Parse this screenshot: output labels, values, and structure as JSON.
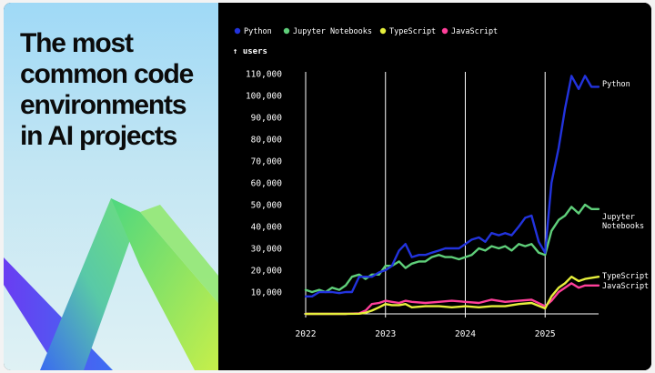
{
  "headline": [
    "The most",
    "common code",
    "environments",
    "in AI projects"
  ],
  "chart_data": {
    "type": "line",
    "ylabel": "users",
    "ylim": [
      0,
      110000
    ],
    "yticks": [
      10000,
      20000,
      30000,
      40000,
      50000,
      60000,
      70000,
      80000,
      90000,
      100000,
      110000
    ],
    "ytick_labels": [
      "10,000",
      "20,000",
      "30,000",
      "40,000",
      "50,000",
      "60,000",
      "70,000",
      "80,000",
      "90,000",
      "100,000",
      "110,000"
    ],
    "xticks": [
      2022,
      2023,
      2024,
      2025
    ],
    "xtick_labels": [
      "2022",
      "2023",
      "2024",
      "2025"
    ],
    "xlim": [
      2022.0,
      2025.67
    ],
    "legend_position": "top",
    "grid": false,
    "series": [
      {
        "name": "Python",
        "end_label": "Python",
        "color": "#2233dd",
        "x": [
          2022.0,
          2022.08,
          2022.17,
          2022.25,
          2022.33,
          2022.42,
          2022.5,
          2022.58,
          2022.67,
          2022.75,
          2022.83,
          2022.92,
          2023.0,
          2023.08,
          2023.17,
          2023.25,
          2023.33,
          2023.42,
          2023.5,
          2023.58,
          2023.67,
          2023.75,
          2023.83,
          2023.92,
          2024.0,
          2024.08,
          2024.17,
          2024.25,
          2024.33,
          2024.42,
          2024.5,
          2024.58,
          2024.67,
          2024.75,
          2024.83,
          2024.92,
          2025.0,
          2025.08,
          2025.17,
          2025.25,
          2025.33,
          2025.42,
          2025.5,
          2025.58,
          2025.67
        ],
        "values": [
          8000,
          8000,
          10000,
          10000,
          10000,
          9500,
          10000,
          10000,
          17000,
          17000,
          17000,
          19000,
          20000,
          22000,
          29000,
          32000,
          26000,
          27000,
          27000,
          28000,
          29000,
          30000,
          30000,
          30000,
          32000,
          34000,
          35000,
          33000,
          37000,
          36000,
          37000,
          36000,
          40000,
          44000,
          45000,
          33000,
          28000,
          60000,
          76000,
          94000,
          109000,
          103000,
          109000,
          104000,
          104000
        ]
      },
      {
        "name": "Jupyter Notebooks",
        "end_label": "Jupyter Notebooks",
        "color": "#5fcf7a",
        "x": [
          2022.0,
          2022.08,
          2022.17,
          2022.25,
          2022.33,
          2022.42,
          2022.5,
          2022.58,
          2022.67,
          2022.75,
          2022.83,
          2022.92,
          2023.0,
          2023.08,
          2023.17,
          2023.25,
          2023.33,
          2023.42,
          2023.5,
          2023.58,
          2023.67,
          2023.75,
          2023.83,
          2023.92,
          2024.0,
          2024.08,
          2024.17,
          2024.25,
          2024.33,
          2024.42,
          2024.5,
          2024.58,
          2024.67,
          2024.75,
          2024.83,
          2024.92,
          2025.0,
          2025.08,
          2025.17,
          2025.25,
          2025.33,
          2025.42,
          2025.5,
          2025.58,
          2025.67
        ],
        "values": [
          11000,
          10000,
          11000,
          10000,
          12000,
          11000,
          13000,
          17000,
          18000,
          16000,
          18000,
          18000,
          22000,
          22000,
          24000,
          21000,
          23000,
          24000,
          24000,
          26000,
          27000,
          26000,
          26000,
          25000,
          26000,
          27000,
          30000,
          29000,
          31000,
          30000,
          31000,
          29000,
          32000,
          31000,
          32000,
          28000,
          27000,
          38000,
          43000,
          45000,
          49000,
          46000,
          50000,
          48000,
          48000
        ]
      },
      {
        "name": "TypeScript",
        "end_label": "TypeScript",
        "color": "#e6ef3c",
        "x": [
          2022.0,
          2022.17,
          2022.33,
          2022.5,
          2022.67,
          2022.75,
          2022.83,
          2022.92,
          2023.0,
          2023.08,
          2023.17,
          2023.25,
          2023.33,
          2023.5,
          2023.67,
          2023.83,
          2024.0,
          2024.17,
          2024.33,
          2024.5,
          2024.67,
          2024.83,
          2025.0,
          2025.08,
          2025.17,
          2025.25,
          2025.33,
          2025.42,
          2025.5,
          2025.67
        ],
        "values": [
          0,
          0,
          0,
          0,
          100,
          500,
          1500,
          3000,
          4500,
          4000,
          4000,
          4500,
          3000,
          3500,
          3500,
          3000,
          3500,
          3000,
          3500,
          3500,
          4500,
          5000,
          2500,
          8000,
          12000,
          14000,
          17000,
          15000,
          16000,
          17000
        ]
      },
      {
        "name": "JavaScript",
        "end_label": "JavaScript",
        "color": "#ff3f9a",
        "x": [
          2022.0,
          2022.17,
          2022.33,
          2022.5,
          2022.67,
          2022.75,
          2022.83,
          2022.92,
          2023.0,
          2023.08,
          2023.17,
          2023.25,
          2023.33,
          2023.5,
          2023.67,
          2023.83,
          2024.0,
          2024.17,
          2024.33,
          2024.5,
          2024.67,
          2024.83,
          2025.0,
          2025.08,
          2025.17,
          2025.25,
          2025.33,
          2025.42,
          2025.5,
          2025.67
        ],
        "values": [
          0,
          0,
          0,
          0,
          200,
          1500,
          4500,
          5000,
          6000,
          5500,
          5000,
          6000,
          5500,
          5000,
          5500,
          6000,
          5500,
          5000,
          6500,
          5500,
          6000,
          6500,
          3500,
          6000,
          10000,
          12000,
          14000,
          12000,
          13000,
          13000
        ]
      }
    ]
  }
}
